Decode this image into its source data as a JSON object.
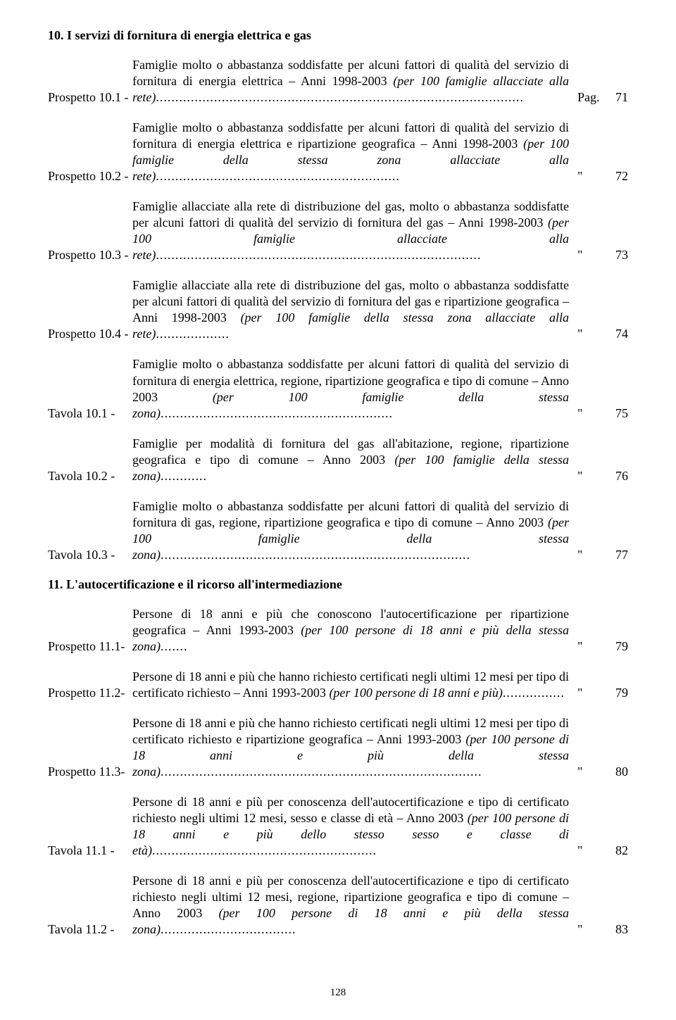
{
  "section10": {
    "title": "10.  I servizi di fornitura di energia elettrica e gas",
    "entries": [
      {
        "label": "Prospetto 10.1 -",
        "desc_plain": "Famiglie molto o abbastanza soddisfatte per alcuni fattori di qualità del servizio di fornitura di energia elettrica – Anni 1998-2003 ",
        "desc_italic": "(per 100 famiglie allacciate alla rete)",
        "leader": "...............................................................................................",
        "pref": "Pag.",
        "num": "71"
      },
      {
        "label": "Prospetto 10.2 -",
        "desc_plain": "Famiglie molto o abbastanza soddisfatte per alcuni fattori di qualità del servizio di fornitura di energia elettrica e ripartizione geografica – Anni 1998-2003 ",
        "desc_italic": "(per 100 famiglie della stessa zona allacciate alla rete)",
        "leader": "...............................................................",
        "pref": "\"",
        "num": "72"
      },
      {
        "label": "Prospetto 10.3 -",
        "desc_plain": "Famiglie allacciate alla rete di distribuzione del gas, molto o abbastanza soddisfatte per alcuni fattori di qualità del servizio di fornitura del gas – Anni 1998-2003 ",
        "desc_italic": "(per 100 famiglie allacciate alla rete)",
        "leader": "....................................................................................",
        "pref": "\"",
        "num": "73"
      },
      {
        "label": "Prospetto 10.4 -",
        "desc_plain": "Famiglie allacciate alla rete di distribuzione del gas, molto o abbastanza soddisfatte per alcuni fattori di qualità del servizio di fornitura del gas e ripartizione geografica – Anni 1998-2003 ",
        "desc_italic": "(per 100 famiglie della stessa zona allacciate alla rete)",
        "leader": "...................",
        "pref": "\"",
        "num": "74"
      },
      {
        "label": "Tavola 10.1 -",
        "desc_plain": "Famiglie molto o abbastanza soddisfatte per alcuni fattori di qualità del servizio di fornitura di energia elettrica, regione, ripartizione geografica e tipo di comune – Anno 2003 ",
        "desc_italic": "(per 100 famiglie della stessa zona)",
        "leader": "............................................................",
        "pref": "\"",
        "num": "75"
      },
      {
        "label": "Tavola 10.2 -",
        "desc_plain": "Famiglie per modalità di fornitura del gas all'abitazione, regione, ripartizione geografica e tipo di comune – Anno 2003 ",
        "desc_italic": "(per 100 famiglie della stessa zona)",
        "leader": "............",
        "pref": "\"",
        "num": "76"
      },
      {
        "label": "Tavola 10.3 -",
        "desc_plain": "Famiglie molto o abbastanza soddisfatte per alcuni fattori di qualità del servizio di fornitura di gas, regione, ripartizione geografica e tipo di comune – Anno 2003 ",
        "desc_italic": "(per 100 famiglie della stessa zona)",
        "leader": "................................................................................",
        "pref": "\"",
        "num": "77"
      }
    ]
  },
  "section11": {
    "title": "11.  L'autocertificazione e il ricorso all'intermediazione",
    "entries": [
      {
        "label": "Prospetto 11.1-",
        "desc_plain": "Persone di 18 anni e più che conoscono l'autocertificazione per ripartizione geografica – Anni 1993-2003 ",
        "desc_italic": "(per 100 persone di 18 anni e più della stessa zona)",
        "leader": ".......",
        "pref": "\"",
        "num": "79"
      },
      {
        "label": "Prospetto 11.2-",
        "desc_plain": "Persone di 18 anni e più che hanno richiesto certificati negli ultimi 12 mesi per tipo di certificato richiesto – Anni 1993-2003 ",
        "desc_italic": "(per 100 persone di 18 anni e più)",
        "leader": "................",
        "pref": "\"",
        "num": "79"
      },
      {
        "label": "Prospetto 11.3-",
        "desc_plain": "Persone di 18 anni e più che hanno richiesto certificati negli ultimi 12 mesi per tipo di certificato richiesto e ripartizione geografica – Anni 1993-2003 ",
        "desc_italic": "(per 100 persone di 18 anni e più della stessa zona)",
        "leader": "...................................................................................",
        "pref": "\"",
        "num": "80"
      },
      {
        "label": "Tavola 11.1 -",
        "desc_plain": "Persone di 18 anni e più per conoscenza dell'autocertificazione e tipo di certificato richiesto negli ultimi 12 mesi, sesso e classe di età – Anno 2003 ",
        "desc_italic": "(per 100 persone di 18 anni e più dello stesso sesso e classe di età)",
        "leader": "..........................................................",
        "pref": "\"",
        "num": "82"
      },
      {
        "label": "Tavola 11.2 -",
        "desc_plain": "Persone di 18 anni e più per conoscenza dell'autocertificazione e tipo di certificato richiesto negli ultimi 12 mesi, regione, ripartizione geografica e tipo di comune – Anno 2003 ",
        "desc_italic": "(per 100 persone di 18 anni e più della stessa zona)",
        "leader": "...................................",
        "pref": "\"",
        "num": "83"
      }
    ]
  },
  "pageNumber": "128"
}
